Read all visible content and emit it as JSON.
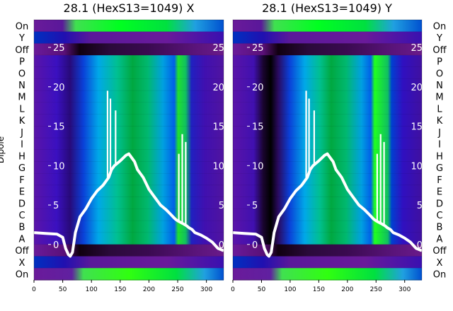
{
  "chart_data": [
    {
      "type": "heatmap",
      "title": "28.1 (HexS13=1049) X",
      "ylabel": "Dipole",
      "row_labels_top_to_bottom": [
        "On",
        "Y",
        "Off",
        "P",
        "O",
        "N",
        "M",
        "L",
        "K",
        "J",
        "I",
        "H",
        "G",
        "F",
        "E",
        "D",
        "C",
        "B",
        "A",
        "Off",
        "X",
        "On"
      ],
      "xlim": [
        0,
        330
      ],
      "x_ticks": [
        0,
        50,
        100,
        150,
        200,
        250,
        300
      ],
      "overlay_ylim": [
        -4.5,
        28.5
      ],
      "overlay_ticks": [
        0,
        5,
        10,
        15,
        20,
        25
      ],
      "overlay_line": {
        "x": [
          0,
          20,
          40,
          50,
          55,
          60,
          63,
          67,
          72,
          80,
          90,
          100,
          110,
          120,
          130,
          135,
          140,
          145,
          150,
          160,
          165,
          170,
          175,
          180,
          190,
          200,
          210,
          220,
          230,
          238,
          242,
          246,
          250,
          255,
          260,
          265,
          270,
          275,
          280,
          290,
          300,
          310,
          320,
          330
        ],
        "y": [
          1.5,
          1.4,
          1.3,
          0.9,
          -0.5,
          -1.3,
          -1.5,
          -1.0,
          1.5,
          3.5,
          4.5,
          5.8,
          6.8,
          7.5,
          8.5,
          9.5,
          10.0,
          10.3,
          10.6,
          11.3,
          11.5,
          11.0,
          10.5,
          9.5,
          8.5,
          7.0,
          6.0,
          5.0,
          4.4,
          3.8,
          3.5,
          3.2,
          3.0,
          2.8,
          2.6,
          2.4,
          2.1,
          1.9,
          1.5,
          1.2,
          0.8,
          0.3,
          -0.5,
          -0.8
        ],
        "spikes": [
          {
            "x": 128,
            "y": 19.5
          },
          {
            "x": 133,
            "y": 18.5
          },
          {
            "x": 142,
            "y": 17.0
          },
          {
            "x": 252,
            "y": 11.5
          },
          {
            "x": 258,
            "y": 14.0
          },
          {
            "x": 264,
            "y": 13.0
          }
        ]
      }
    },
    {
      "type": "heatmap",
      "title": "28.1 (HexS13=1049) Y",
      "row_labels_top_to_bottom": [
        "On",
        "Y",
        "Off",
        "P",
        "O",
        "N",
        "M",
        "L",
        "K",
        "J",
        "I",
        "H",
        "G",
        "F",
        "E",
        "D",
        "C",
        "B",
        "A",
        "Off",
        "X",
        "On"
      ],
      "xlim": [
        0,
        330
      ],
      "x_ticks": [
        0,
        50,
        100,
        150,
        200,
        250,
        300
      ],
      "overlay_ylim": [
        -4.5,
        28.5
      ],
      "overlay_ticks": [
        0,
        5,
        10,
        15,
        20,
        25
      ],
      "overlay_line": {
        "x": [
          0,
          20,
          40,
          50,
          55,
          60,
          63,
          67,
          72,
          80,
          90,
          100,
          110,
          120,
          130,
          135,
          140,
          145,
          150,
          160,
          165,
          170,
          175,
          180,
          190,
          200,
          210,
          220,
          230,
          238,
          242,
          246,
          250,
          255,
          260,
          265,
          270,
          275,
          280,
          290,
          300,
          310,
          320,
          330
        ],
        "y": [
          1.5,
          1.4,
          1.3,
          0.9,
          -0.5,
          -1.3,
          -1.5,
          -1.0,
          1.5,
          3.5,
          4.5,
          5.8,
          6.8,
          7.5,
          8.5,
          9.5,
          10.0,
          10.3,
          10.6,
          11.3,
          11.5,
          11.0,
          10.5,
          9.5,
          8.5,
          7.0,
          6.0,
          5.0,
          4.4,
          3.8,
          3.5,
          3.2,
          3.0,
          2.8,
          2.6,
          2.4,
          2.1,
          1.9,
          1.5,
          1.2,
          0.8,
          0.3,
          -0.5,
          -0.8
        ],
        "spikes": [
          {
            "x": 128,
            "y": 19.5
          },
          {
            "x": 133,
            "y": 18.5
          },
          {
            "x": 142,
            "y": 17.0
          },
          {
            "x": 252,
            "y": 11.5
          },
          {
            "x": 258,
            "y": 14.0
          },
          {
            "x": 264,
            "y": 13.0
          }
        ]
      }
    }
  ],
  "colors": {
    "background": "#ffffff",
    "text": "#000000",
    "overlay_line": "#ffffff",
    "colormap": [
      "#000000",
      "#3a0a4a",
      "#6a1a9a",
      "#3010c8",
      "#0060e0",
      "#00b0e8",
      "#00c870",
      "#00ff20",
      "#a0ff00"
    ]
  }
}
